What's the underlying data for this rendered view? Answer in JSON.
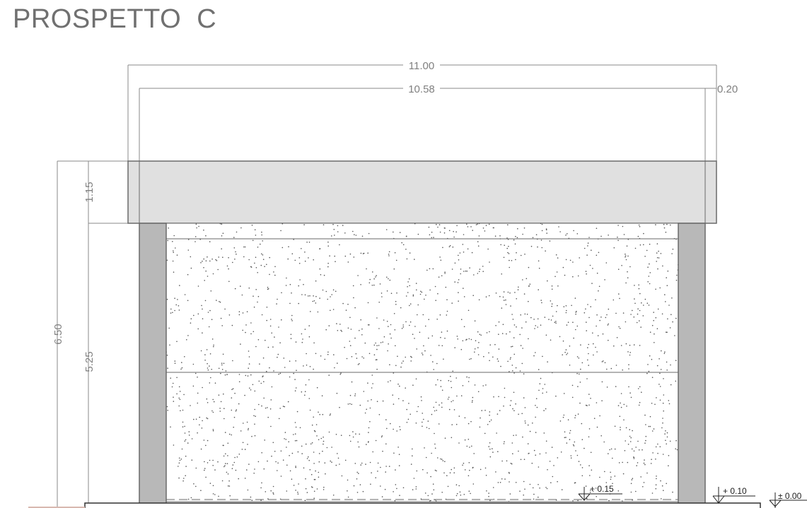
{
  "title": "PROSPETTO  C",
  "dimensions": {
    "overall_width": "11.00",
    "inner_width": "10.58",
    "side_offset": "0.20",
    "total_height": "6.50",
    "beam_height": "1.15",
    "wall_height": "5.25"
  },
  "levels": [
    {
      "label": "+ 0.15"
    },
    {
      "label": "+ 0.10"
    },
    {
      "label": "± 0.00"
    }
  ],
  "colors": {
    "beam_fill": "#e0e0e0",
    "column_fill": "#b8b8b8",
    "outline": "#6a6a6a",
    "dim_line": "#8a8a8a",
    "stipple": "#555555",
    "title": "#707070"
  }
}
